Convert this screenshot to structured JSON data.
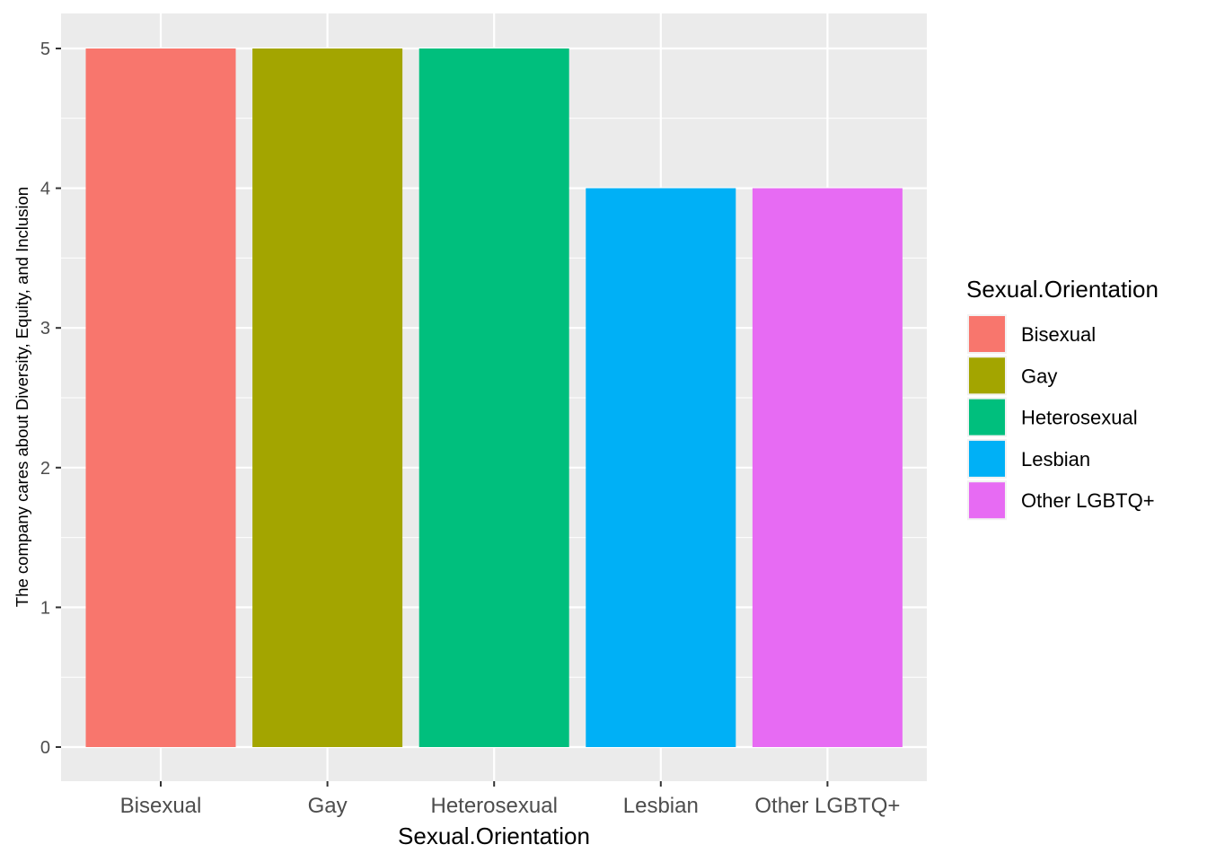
{
  "chart_data": {
    "type": "bar",
    "title": "",
    "xlabel": "Sexual.Orientation",
    "ylabel": "The company cares about Diversity, Equity, and Inclusion",
    "categories": [
      "Bisexual",
      "Gay",
      "Heterosexual",
      "Lesbian",
      "Other LGBTQ+"
    ],
    "values": [
      5,
      5,
      5,
      4,
      4
    ],
    "colors": [
      "#F8766D",
      "#A3A500",
      "#00BF7D",
      "#00B0F6",
      "#E76BF3"
    ],
    "ylim": [
      0,
      5
    ],
    "y_ticks": [
      "0",
      "1",
      "2",
      "3",
      "4",
      "5"
    ],
    "grid": true,
    "panel_background": "#EBEBEB",
    "legend": {
      "title": "Sexual.Orientation",
      "position": "right",
      "items": [
        "Bisexual",
        "Gay",
        "Heterosexual",
        "Lesbian",
        "Other LGBTQ+"
      ]
    }
  }
}
